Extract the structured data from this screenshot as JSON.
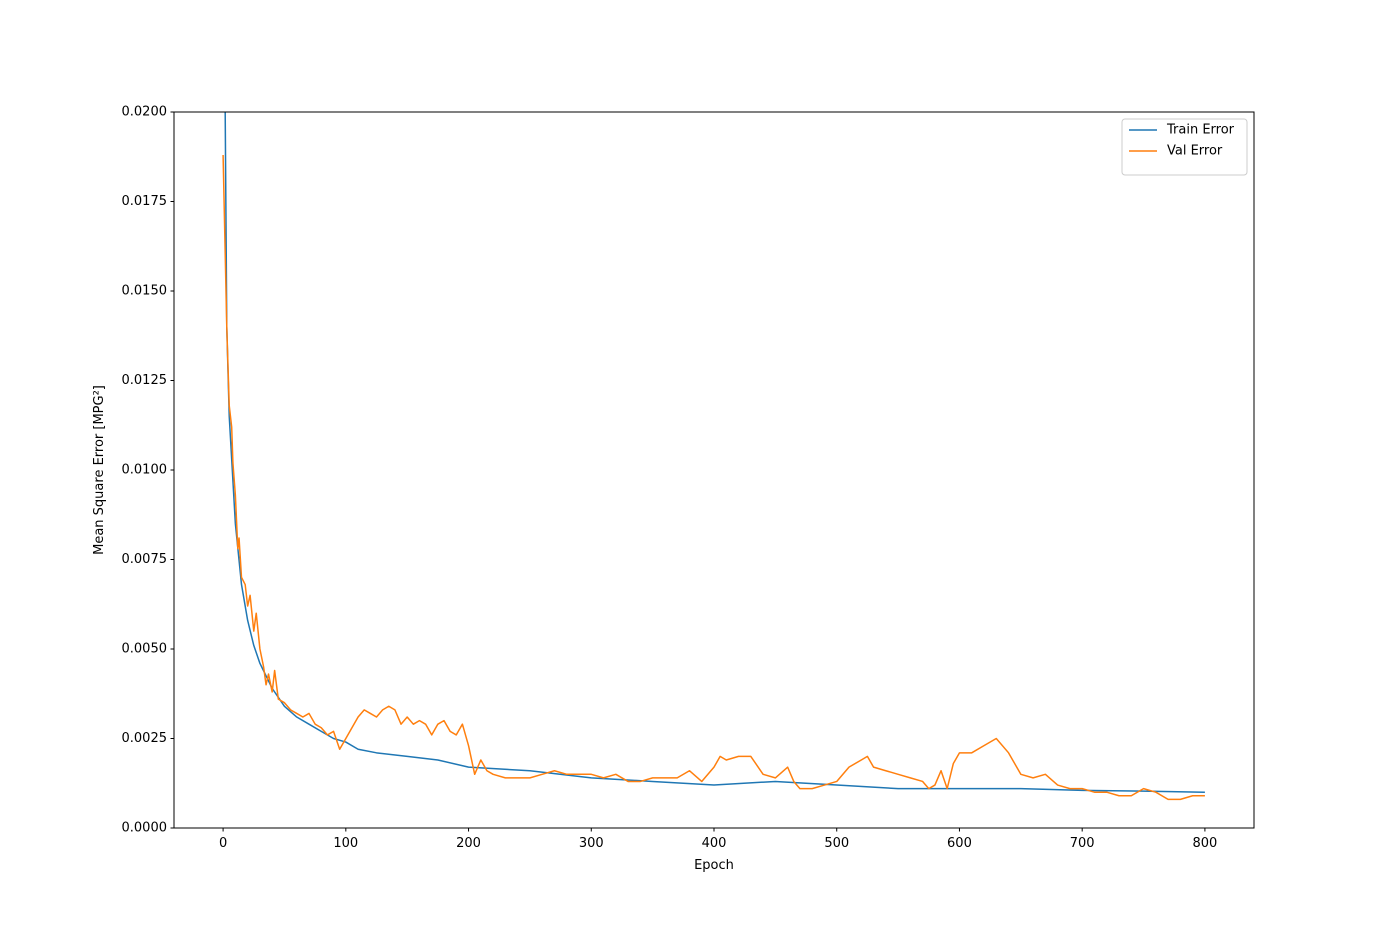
{
  "chart_data": {
    "type": "line",
    "xlabel": "Epoch",
    "ylabel": "Mean Square Error [MPG²]",
    "xlim": [
      -40,
      840
    ],
    "ylim": [
      0,
      0.02
    ],
    "xticks": [
      0,
      100,
      200,
      300,
      400,
      500,
      600,
      700,
      800
    ],
    "yticks": [
      {
        "value": 0,
        "label": "0.0000"
      },
      {
        "value": 0.0025,
        "label": "0.0025"
      },
      {
        "value": 0.005,
        "label": "0.0050"
      },
      {
        "value": 0.0075,
        "label": "0.0075"
      },
      {
        "value": 0.01,
        "label": "0.0100"
      },
      {
        "value": 0.0125,
        "label": "0.0125"
      },
      {
        "value": 0.015,
        "label": "0.0150"
      },
      {
        "value": 0.0175,
        "label": "0.0175"
      },
      {
        "value": 0.02,
        "label": "0.0200"
      }
    ],
    "legend": "upper right",
    "series": [
      {
        "name": "Train Error",
        "color": "#1f77b4",
        "x": [
          0,
          3,
          5,
          10,
          15,
          20,
          25,
          30,
          40,
          50,
          60,
          70,
          80,
          90,
          100,
          110,
          125,
          150,
          175,
          200,
          250,
          300,
          350,
          400,
          450,
          500,
          550,
          600,
          650,
          700,
          750,
          800
        ],
        "values": [
          0.028,
          0.014,
          0.0115,
          0.0085,
          0.0068,
          0.0058,
          0.0051,
          0.0046,
          0.0039,
          0.0034,
          0.0031,
          0.0029,
          0.0027,
          0.0025,
          0.0024,
          0.0022,
          0.0021,
          0.002,
          0.0019,
          0.0017,
          0.0016,
          0.0014,
          0.0013,
          0.0012,
          0.0013,
          0.0012,
          0.0011,
          0.0011,
          0.0011,
          0.00105,
          0.00103,
          0.001
        ]
      },
      {
        "name": "Val Error",
        "color": "#ff7f0e",
        "x": [
          0,
          3,
          5,
          7,
          8,
          10,
          12,
          13,
          15,
          18,
          20,
          22,
          25,
          27,
          30,
          33,
          35,
          37,
          40,
          42,
          45,
          50,
          55,
          60,
          65,
          70,
          75,
          80,
          85,
          90,
          95,
          100,
          105,
          110,
          115,
          120,
          125,
          130,
          135,
          140,
          145,
          150,
          155,
          160,
          165,
          170,
          175,
          180,
          185,
          190,
          195,
          200,
          205,
          210,
          215,
          220,
          230,
          240,
          250,
          260,
          270,
          280,
          290,
          300,
          310,
          320,
          330,
          340,
          350,
          360,
          370,
          380,
          390,
          400,
          405,
          410,
          420,
          430,
          440,
          450,
          460,
          465,
          470,
          480,
          490,
          500,
          510,
          520,
          525,
          530,
          540,
          550,
          560,
          570,
          575,
          580,
          585,
          590,
          595,
          600,
          610,
          620,
          630,
          640,
          650,
          660,
          670,
          680,
          690,
          700,
          710,
          720,
          730,
          740,
          750,
          760,
          770,
          780,
          790,
          800
        ],
        "values": [
          0.0188,
          0.014,
          0.0118,
          0.0112,
          0.0102,
          0.0093,
          0.0078,
          0.0081,
          0.007,
          0.0068,
          0.0062,
          0.0065,
          0.0055,
          0.006,
          0.005,
          0.0045,
          0.004,
          0.0043,
          0.0038,
          0.0044,
          0.0036,
          0.0035,
          0.0033,
          0.0032,
          0.0031,
          0.0032,
          0.0029,
          0.0028,
          0.0026,
          0.0027,
          0.0022,
          0.0025,
          0.0028,
          0.0031,
          0.0033,
          0.0032,
          0.0031,
          0.0033,
          0.0034,
          0.0033,
          0.0029,
          0.0031,
          0.0029,
          0.003,
          0.0029,
          0.0026,
          0.0029,
          0.003,
          0.0027,
          0.0026,
          0.0029,
          0.0023,
          0.0015,
          0.0019,
          0.0016,
          0.0015,
          0.0014,
          0.0014,
          0.0014,
          0.0015,
          0.0016,
          0.0015,
          0.0015,
          0.0015,
          0.0014,
          0.0015,
          0.0013,
          0.0013,
          0.0014,
          0.0014,
          0.0014,
          0.0016,
          0.0013,
          0.0017,
          0.002,
          0.0019,
          0.002,
          0.002,
          0.0015,
          0.0014,
          0.0017,
          0.0013,
          0.0011,
          0.0011,
          0.0012,
          0.0013,
          0.0017,
          0.0019,
          0.002,
          0.0017,
          0.0016,
          0.0015,
          0.0014,
          0.0013,
          0.0011,
          0.0012,
          0.0016,
          0.0011,
          0.0018,
          0.0021,
          0.0021,
          0.0023,
          0.0025,
          0.0021,
          0.0015,
          0.0014,
          0.0015,
          0.0012,
          0.0011,
          0.0011,
          0.001,
          0.001,
          0.0009,
          0.0009,
          0.0011,
          0.001,
          0.0008,
          0.0008,
          0.0009,
          0.0009
        ]
      }
    ]
  }
}
